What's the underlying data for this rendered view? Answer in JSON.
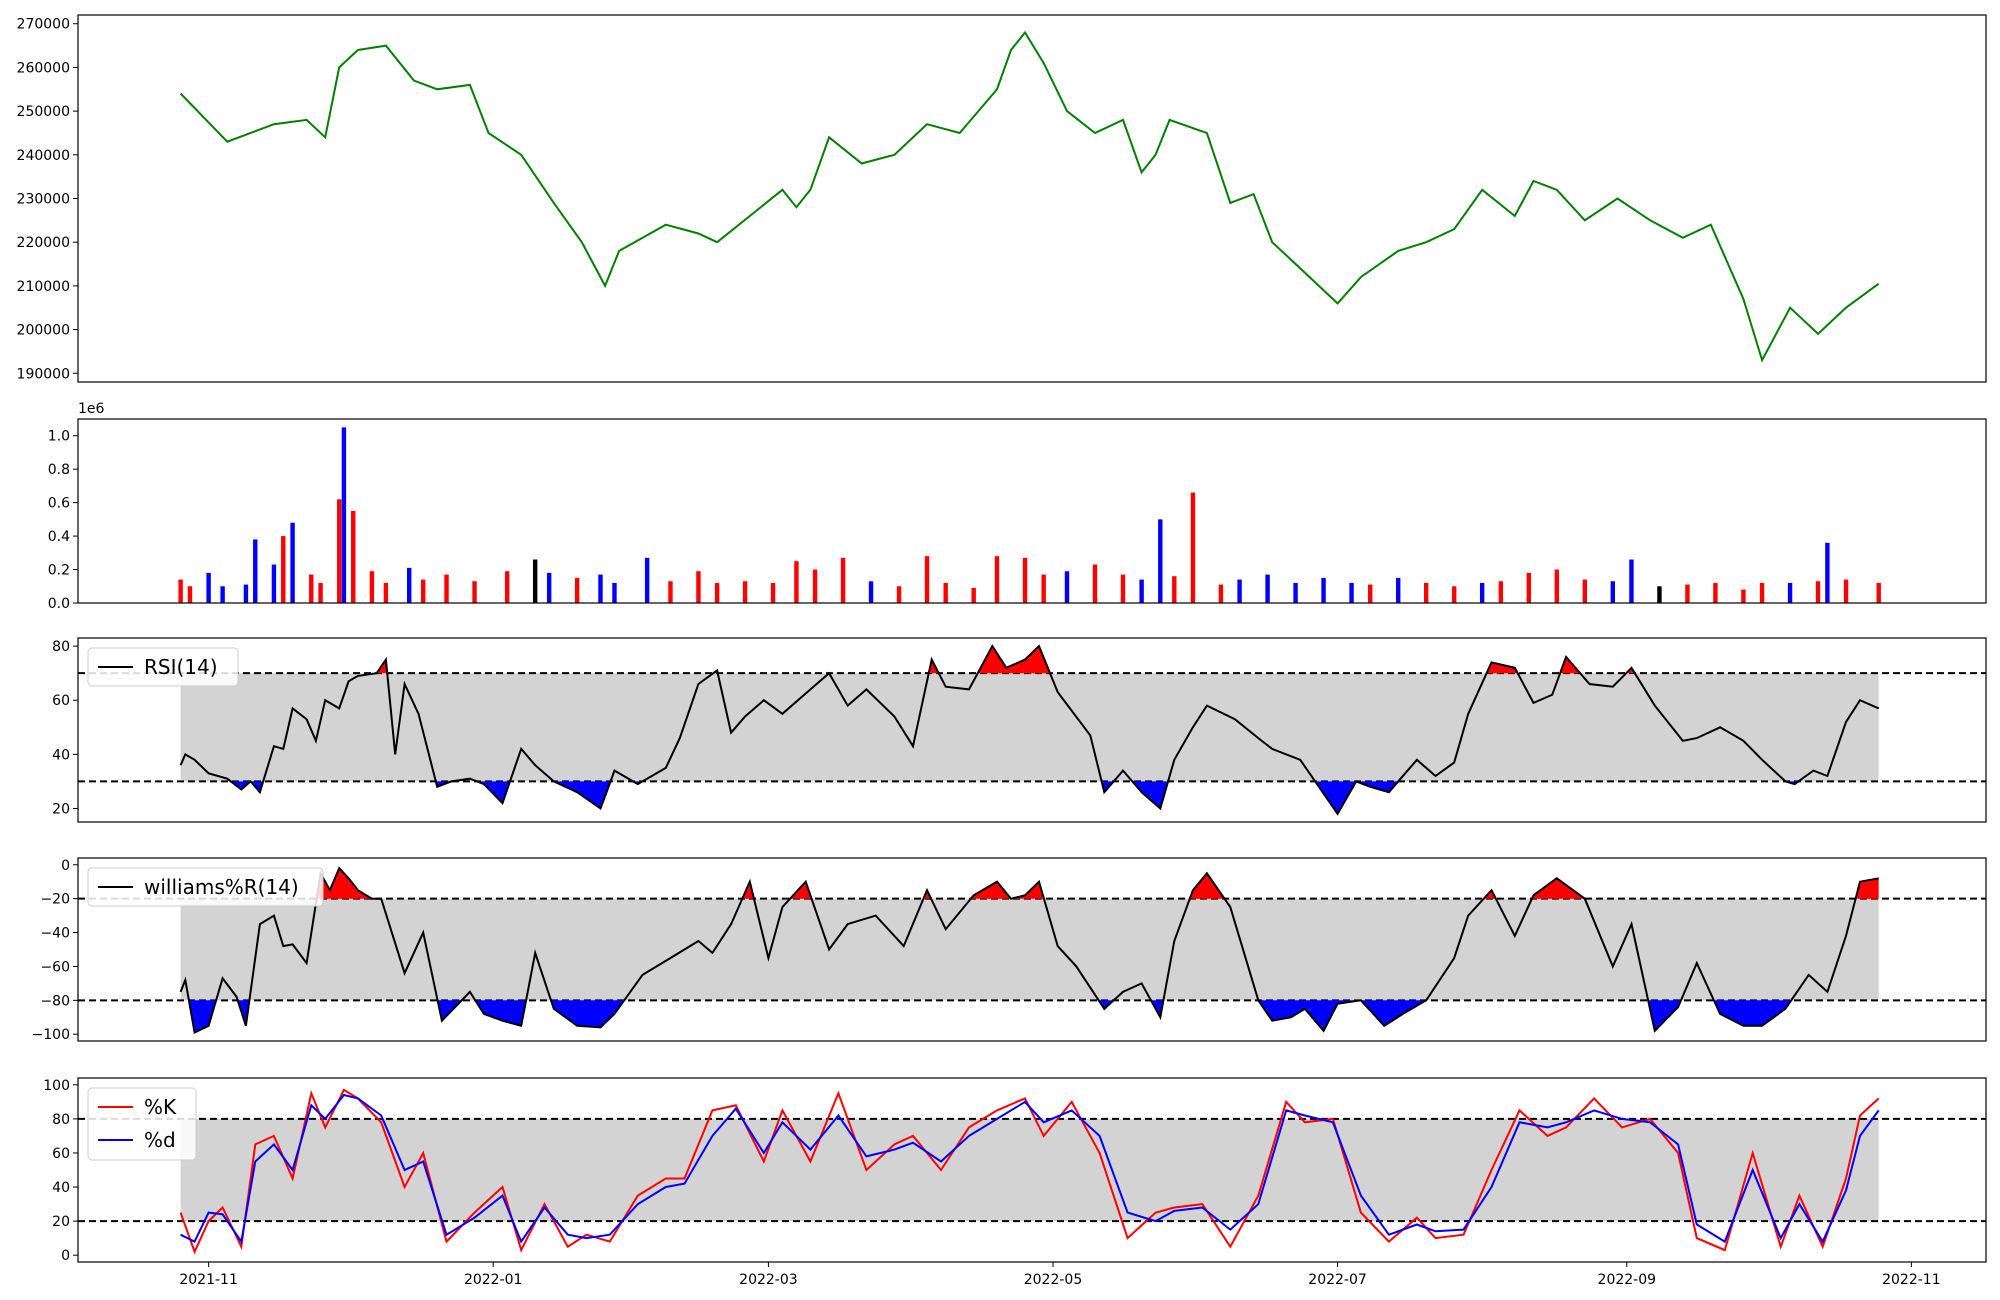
{
  "chart_data": [
    {
      "type": "line",
      "panel": "price",
      "color": "#008000",
      "ylim": [
        188000,
        272000
      ],
      "yticks": [
        190000,
        200000,
        210000,
        220000,
        230000,
        240000,
        250000,
        260000,
        270000
      ],
      "yticklabels": [
        "190000",
        "200000",
        "210000",
        "220000",
        "230000",
        "240000",
        "250000",
        "260000",
        "270000"
      ],
      "x": [
        "2021-10-26",
        "2021-11-05",
        "2021-11-15",
        "2021-11-22",
        "2021-11-26",
        "2021-11-29",
        "2021-12-03",
        "2021-12-09",
        "2021-12-15",
        "2021-12-20",
        "2021-12-27",
        "2021-12-31",
        "2022-01-07",
        "2022-01-14",
        "2022-01-20",
        "2022-01-25",
        "2022-01-28",
        "2022-02-07",
        "2022-02-14",
        "2022-02-18",
        "2022-02-25",
        "2022-03-04",
        "2022-03-07",
        "2022-03-10",
        "2022-03-14",
        "2022-03-21",
        "2022-03-28",
        "2022-04-04",
        "2022-04-11",
        "2022-04-15",
        "2022-04-19",
        "2022-04-22",
        "2022-04-25",
        "2022-04-29",
        "2022-05-04",
        "2022-05-10",
        "2022-05-16",
        "2022-05-20",
        "2022-05-23",
        "2022-05-26",
        "2022-06-03",
        "2022-06-08",
        "2022-06-13",
        "2022-06-17",
        "2022-06-22",
        "2022-06-29",
        "2022-07-01",
        "2022-07-06",
        "2022-07-14",
        "2022-07-20",
        "2022-07-26",
        "2022-08-01",
        "2022-08-08",
        "2022-08-12",
        "2022-08-17",
        "2022-08-23",
        "2022-08-30",
        "2022-09-06",
        "2022-09-13",
        "2022-09-19",
        "2022-09-26",
        "2022-09-30",
        "2022-10-06",
        "2022-10-12",
        "2022-10-18",
        "2022-10-25"
      ],
      "values": [
        254000,
        243000,
        247000,
        248000,
        244000,
        260000,
        264000,
        265000,
        257000,
        255000,
        256000,
        245000,
        240000,
        229000,
        220000,
        210000,
        218000,
        224000,
        222000,
        220000,
        226000,
        232000,
        228000,
        232000,
        244000,
        238000,
        240000,
        247000,
        245000,
        250000,
        255000,
        264000,
        268000,
        261000,
        250000,
        245000,
        248000,
        236000,
        240000,
        248000,
        245000,
        229000,
        231000,
        220000,
        215000,
        208000,
        206000,
        212000,
        218000,
        220000,
        223000,
        232000,
        226000,
        234000,
        232000,
        225000,
        230000,
        225000,
        221000,
        224000,
        207000,
        193000,
        205000,
        199000,
        205000,
        210500
      ]
    },
    {
      "type": "bar",
      "panel": "volume",
      "exponent_label": "1e6",
      "ylim": [
        0,
        1.1
      ],
      "yticks": [
        0,
        0.2,
        0.4,
        0.6,
        0.8,
        1.0
      ],
      "yticklabels": [
        "0.0",
        "0.2",
        "0.4",
        "0.6",
        "0.8",
        "1.0"
      ],
      "colors": {
        "up": "#ff0000",
        "down": "#0000ff",
        "flat": "#000000"
      },
      "x": [
        "2021-10-26",
        "2021-10-28",
        "2021-11-01",
        "2021-11-04",
        "2021-11-09",
        "2021-11-11",
        "2021-11-15",
        "2021-11-17",
        "2021-11-19",
        "2021-11-23",
        "2021-11-25",
        "2021-11-29",
        "2021-11-30",
        "2021-12-02",
        "2021-12-06",
        "2021-12-09",
        "2021-12-14",
        "2021-12-17",
        "2021-12-22",
        "2021-12-28",
        "2022-01-04",
        "2022-01-10",
        "2022-01-13",
        "2022-01-19",
        "2022-01-24",
        "2022-01-27",
        "2022-02-03",
        "2022-02-08",
        "2022-02-14",
        "2022-02-18",
        "2022-02-24",
        "2022-03-02",
        "2022-03-07",
        "2022-03-11",
        "2022-03-17",
        "2022-03-23",
        "2022-03-29",
        "2022-04-04",
        "2022-04-08",
        "2022-04-14",
        "2022-04-19",
        "2022-04-25",
        "2022-04-29",
        "2022-05-04",
        "2022-05-10",
        "2022-05-16",
        "2022-05-20",
        "2022-05-24",
        "2022-05-27",
        "2022-05-31",
        "2022-06-06",
        "2022-06-10",
        "2022-06-16",
        "2022-06-22",
        "2022-06-28",
        "2022-07-04",
        "2022-07-08",
        "2022-07-14",
        "2022-07-20",
        "2022-07-26",
        "2022-08-01",
        "2022-08-05",
        "2022-08-11",
        "2022-08-17",
        "2022-08-23",
        "2022-08-29",
        "2022-09-02",
        "2022-09-08",
        "2022-09-14",
        "2022-09-20",
        "2022-09-26",
        "2022-09-30",
        "2022-10-06",
        "2022-10-12",
        "2022-10-14",
        "2022-10-18",
        "2022-10-25"
      ],
      "values": [
        0.14,
        0.1,
        0.18,
        0.1,
        0.11,
        0.38,
        0.23,
        0.4,
        0.48,
        0.17,
        0.12,
        0.62,
        1.05,
        0.55,
        0.19,
        0.12,
        0.21,
        0.14,
        0.17,
        0.13,
        0.19,
        0.26,
        0.18,
        0.15,
        0.17,
        0.12,
        0.27,
        0.13,
        0.19,
        0.12,
        0.13,
        0.12,
        0.25,
        0.2,
        0.27,
        0.13,
        0.1,
        0.28,
        0.12,
        0.09,
        0.28,
        0.27,
        0.17,
        0.19,
        0.23,
        0.17,
        0.14,
        0.5,
        0.16,
        0.66,
        0.11,
        0.14,
        0.17,
        0.12,
        0.15,
        0.12,
        0.11,
        0.15,
        0.12,
        0.1,
        0.12,
        0.13,
        0.18,
        0.2,
        0.14,
        0.13,
        0.26,
        0.1,
        0.11,
        0.12,
        0.08,
        0.12,
        0.12,
        0.13,
        0.36,
        0.14,
        0.12
      ],
      "directions": [
        "up",
        "up",
        "down",
        "down",
        "down",
        "down",
        "down",
        "up",
        "down",
        "up",
        "up",
        "up",
        "down",
        "up",
        "up",
        "up",
        "down",
        "up",
        "up",
        "up",
        "up",
        "flat",
        "down",
        "up",
        "down",
        "down",
        "down",
        "up",
        "up",
        "up",
        "up",
        "up",
        "up",
        "up",
        "up",
        "down",
        "up",
        "up",
        "up",
        "up",
        "up",
        "up",
        "up",
        "down",
        "up",
        "up",
        "down",
        "down",
        "up",
        "up",
        "up",
        "down",
        "down",
        "down",
        "down",
        "down",
        "up",
        "down",
        "up",
        "up",
        "down",
        "up",
        "up",
        "up",
        "up",
        "down",
        "down",
        "flat",
        "up",
        "up",
        "red",
        "up",
        "down",
        "up",
        "down",
        "up",
        "up"
      ]
    },
    {
      "type": "line",
      "panel": "rsi",
      "legend": [
        "RSI(14)"
      ],
      "legend_position": "top-left",
      "line_color": "#000000",
      "ylim": [
        15,
        83
      ],
      "yticks": [
        20,
        40,
        60,
        80
      ],
      "yticklabels": [
        "20",
        "40",
        "60",
        "80"
      ],
      "upper": 70,
      "lower": 30,
      "band_color": "#d3d3d3",
      "overbought_color": "#ff0000",
      "oversold_color": "#0000ff",
      "x": [
        "2021-10-26",
        "2021-10-27",
        "2021-10-29",
        "2021-11-01",
        "2021-11-05",
        "2021-11-08",
        "2021-11-10",
        "2021-11-12",
        "2021-11-15",
        "2021-11-17",
        "2021-11-19",
        "2021-11-22",
        "2021-11-24",
        "2021-11-26",
        "2021-11-29",
        "2021-12-01",
        "2021-12-03",
        "2021-12-07",
        "2021-12-09",
        "2021-12-11",
        "2021-12-13",
        "2021-12-16",
        "2021-12-20",
        "2021-12-23",
        "2021-12-27",
        "2021-12-30",
        "2022-01-03",
        "2022-01-07",
        "2022-01-10",
        "2022-01-14",
        "2022-01-19",
        "2022-01-24",
        "2022-01-27",
        "2022-02-01",
        "2022-02-07",
        "2022-02-10",
        "2022-02-14",
        "2022-02-18",
        "2022-02-21",
        "2022-02-24",
        "2022-02-28",
        "2022-03-04",
        "2022-03-10",
        "2022-03-14",
        "2022-03-18",
        "2022-03-22",
        "2022-03-28",
        "2022-04-01",
        "2022-04-05",
        "2022-04-08",
        "2022-04-13",
        "2022-04-18",
        "2022-04-21",
        "2022-04-25",
        "2022-04-28",
        "2022-05-02",
        "2022-05-09",
        "2022-05-12",
        "2022-05-16",
        "2022-05-20",
        "2022-05-24",
        "2022-05-27",
        "2022-05-31",
        "2022-06-03",
        "2022-06-09",
        "2022-06-14",
        "2022-06-17",
        "2022-06-23",
        "2022-06-27",
        "2022-07-01",
        "2022-07-05",
        "2022-07-08",
        "2022-07-12",
        "2022-07-18",
        "2022-07-22",
        "2022-07-26",
        "2022-07-29",
        "2022-08-03",
        "2022-08-08",
        "2022-08-12",
        "2022-08-16",
        "2022-08-19",
        "2022-08-24",
        "2022-08-29",
        "2022-09-02",
        "2022-09-07",
        "2022-09-13",
        "2022-09-16",
        "2022-09-21",
        "2022-09-26",
        "2022-09-30",
        "2022-10-05",
        "2022-10-07",
        "2022-10-11",
        "2022-10-14",
        "2022-10-18",
        "2022-10-21",
        "2022-10-25"
      ],
      "values": [
        36,
        40,
        38,
        33,
        31,
        27,
        30,
        26,
        43,
        42,
        57,
        53,
        45,
        60,
        57,
        67,
        69,
        70,
        75,
        40,
        66,
        55,
        28,
        30,
        31,
        29,
        22,
        42,
        36,
        30,
        26,
        20,
        34,
        29,
        35,
        46,
        66,
        71,
        48,
        54,
        60,
        55,
        64,
        70,
        58,
        64,
        54,
        43,
        75,
        65,
        64,
        80,
        72,
        75,
        80,
        63,
        47,
        26,
        34,
        26,
        20,
        38,
        50,
        58,
        53,
        46,
        42,
        38,
        28,
        18,
        30,
        28,
        26,
        38,
        32,
        37,
        55,
        74,
        72,
        59,
        62,
        76,
        66,
        65,
        72,
        58,
        45,
        46,
        50,
        45,
        38,
        30,
        29,
        34,
        32,
        52,
        60,
        57
      ]
    },
    {
      "type": "line",
      "panel": "williams",
      "legend": [
        "williams%R(14)"
      ],
      "legend_position": "top-left",
      "line_color": "#000000",
      "ylim": [
        -104,
        4
      ],
      "yticks": [
        -100,
        -80,
        -60,
        -40,
        -20,
        0
      ],
      "yticklabels": [
        "−100",
        "−80",
        "−60",
        "−40",
        "−20",
        "0"
      ],
      "upper": -20,
      "lower": -80,
      "band_color": "#d3d3d3",
      "overbought_color": "#ff0000",
      "oversold_color": "#0000ff",
      "x": [
        "2021-10-26",
        "2021-10-27",
        "2021-10-29",
        "2021-11-01",
        "2021-11-04",
        "2021-11-07",
        "2021-11-09",
        "2021-11-12",
        "2021-11-15",
        "2021-11-17",
        "2021-11-19",
        "2021-11-22",
        "2021-11-25",
        "2021-11-27",
        "2021-11-29",
        "2021-12-01",
        "2021-12-03",
        "2021-12-06",
        "2021-12-08",
        "2021-12-13",
        "2021-12-17",
        "2021-12-21",
        "2021-12-27",
        "2021-12-30",
        "2022-01-03",
        "2022-01-07",
        "2022-01-10",
        "2022-01-14",
        "2022-01-19",
        "2022-01-24",
        "2022-01-27",
        "2022-02-02",
        "2022-02-08",
        "2022-02-14",
        "2022-02-17",
        "2022-02-21",
        "2022-02-25",
        "2022-03-01",
        "2022-03-04",
        "2022-03-09",
        "2022-03-14",
        "2022-03-18",
        "2022-03-24",
        "2022-03-30",
        "2022-04-04",
        "2022-04-08",
        "2022-04-14",
        "2022-04-19",
        "2022-04-22",
        "2022-04-25",
        "2022-04-28",
        "2022-05-02",
        "2022-05-06",
        "2022-05-12",
        "2022-05-16",
        "2022-05-20",
        "2022-05-24",
        "2022-05-27",
        "2022-05-31",
        "2022-06-03",
        "2022-06-08",
        "2022-06-14",
        "2022-06-17",
        "2022-06-21",
        "2022-06-24",
        "2022-06-28",
        "2022-07-01",
        "2022-07-06",
        "2022-07-11",
        "2022-07-15",
        "2022-07-20",
        "2022-07-26",
        "2022-07-29",
        "2022-08-03",
        "2022-08-08",
        "2022-08-12",
        "2022-08-17",
        "2022-08-23",
        "2022-08-29",
        "2022-09-02",
        "2022-09-07",
        "2022-09-12",
        "2022-09-16",
        "2022-09-21",
        "2022-09-26",
        "2022-09-30",
        "2022-10-05",
        "2022-10-10",
        "2022-10-14",
        "2022-10-18",
        "2022-10-21",
        "2022-10-25"
      ],
      "values": [
        -75,
        -68,
        -99,
        -95,
        -67,
        -78,
        -95,
        -35,
        -30,
        -48,
        -47,
        -58,
        -5,
        -15,
        -2,
        -8,
        -15,
        -20,
        -20,
        -64,
        -40,
        -92,
        -75,
        -88,
        -92,
        -95,
        -52,
        -85,
        -95,
        -96,
        -88,
        -65,
        -55,
        -45,
        -52,
        -35,
        -10,
        -55,
        -25,
        -10,
        -50,
        -35,
        -30,
        -48,
        -15,
        -38,
        -18,
        -10,
        -20,
        -18,
        -10,
        -48,
        -60,
        -85,
        -75,
        -70,
        -90,
        -45,
        -15,
        -5,
        -25,
        -80,
        -92,
        -90,
        -85,
        -98,
        -82,
        -80,
        -95,
        -88,
        -80,
        -55,
        -30,
        -15,
        -42,
        -18,
        -8,
        -20,
        -60,
        -35,
        -98,
        -84,
        -58,
        -88,
        -95,
        -95,
        -85,
        -65,
        -75,
        -42,
        -10,
        -8
      ]
    },
    {
      "type": "line",
      "panel": "stochastic",
      "legend": [
        "%K",
        "%d"
      ],
      "legend_position": "top-left",
      "ylim": [
        -4,
        104
      ],
      "yticks": [
        0,
        20,
        40,
        60,
        80,
        100
      ],
      "yticklabels": [
        "0",
        "20",
        "40",
        "60",
        "80",
        "100"
      ],
      "upper": 80,
      "lower": 20,
      "band_color": "#d3d3d3",
      "x": [
        "2021-10-26",
        "2021-10-29",
        "2021-11-01",
        "2021-11-04",
        "2021-11-08",
        "2021-11-11",
        "2021-11-15",
        "2021-11-19",
        "2021-11-23",
        "2021-11-26",
        "2021-11-30",
        "2021-12-03",
        "2021-12-08",
        "2021-12-13",
        "2021-12-17",
        "2021-12-22",
        "2021-12-28",
        "2022-01-03",
        "2022-01-07",
        "2022-01-12",
        "2022-01-17",
        "2022-01-21",
        "2022-01-26",
        "2022-02-01",
        "2022-02-07",
        "2022-02-11",
        "2022-02-17",
        "2022-02-22",
        "2022-02-28",
        "2022-03-04",
        "2022-03-10",
        "2022-03-16",
        "2022-03-22",
        "2022-03-28",
        "2022-04-01",
        "2022-04-07",
        "2022-04-13",
        "2022-04-19",
        "2022-04-25",
        "2022-04-29",
        "2022-05-05",
        "2022-05-11",
        "2022-05-17",
        "2022-05-23",
        "2022-05-27",
        "2022-06-02",
        "2022-06-08",
        "2022-06-14",
        "2022-06-20",
        "2022-06-24",
        "2022-06-30",
        "2022-07-06",
        "2022-07-12",
        "2022-07-18",
        "2022-07-22",
        "2022-07-28",
        "2022-08-03",
        "2022-08-09",
        "2022-08-15",
        "2022-08-19",
        "2022-08-25",
        "2022-08-31",
        "2022-09-06",
        "2022-09-12",
        "2022-09-16",
        "2022-09-22",
        "2022-09-28",
        "2022-10-04",
        "2022-10-08",
        "2022-10-13",
        "2022-10-18",
        "2022-10-21",
        "2022-10-25"
      ],
      "k_values": [
        25,
        2,
        20,
        28,
        5,
        65,
        70,
        45,
        95,
        75,
        97,
        92,
        78,
        40,
        60,
        8,
        25,
        40,
        3,
        30,
        5,
        12,
        8,
        35,
        45,
        45,
        85,
        88,
        55,
        85,
        55,
        95,
        50,
        65,
        70,
        50,
        75,
        85,
        92,
        70,
        90,
        60,
        10,
        25,
        28,
        30,
        5,
        35,
        90,
        78,
        80,
        25,
        8,
        22,
        10,
        12,
        50,
        85,
        70,
        75,
        92,
        75,
        80,
        60,
        10,
        3,
        60,
        5,
        35,
        5,
        45,
        82,
        92
      ],
      "d_values": [
        12,
        8,
        25,
        24,
        8,
        55,
        65,
        50,
        88,
        80,
        94,
        92,
        82,
        50,
        55,
        12,
        22,
        35,
        8,
        28,
        12,
        10,
        12,
        30,
        40,
        42,
        70,
        86,
        60,
        78,
        62,
        82,
        58,
        62,
        66,
        55,
        70,
        80,
        90,
        78,
        85,
        70,
        25,
        20,
        26,
        28,
        15,
        30,
        85,
        82,
        78,
        35,
        12,
        18,
        14,
        15,
        40,
        78,
        75,
        78,
        85,
        80,
        78,
        65,
        18,
        8,
        50,
        10,
        30,
        8,
        38,
        70,
        85
      ]
    }
  ],
  "xaxis": {
    "ticks": [
      "2021-11-01",
      "2022-01-01",
      "2022-03-01",
      "2022-05-01",
      "2022-07-01",
      "2022-09-01",
      "2022-11-01"
    ],
    "ticklabels": [
      "2021-11",
      "2022-01",
      "2022-03",
      "2022-05",
      "2022-07",
      "2022-09",
      "2022-11"
    ],
    "range": [
      "2021-10-04",
      "2022-11-17"
    ]
  }
}
